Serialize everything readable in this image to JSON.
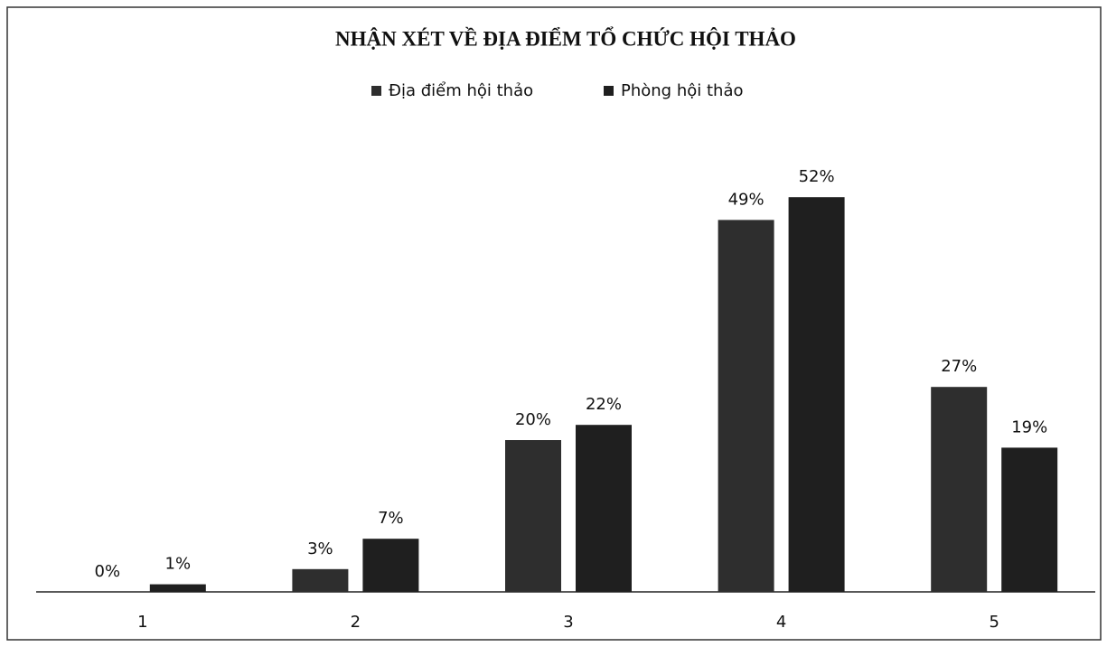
{
  "chart_data": {
    "type": "bar",
    "title": "NHẬN XÉT VỀ ĐỊA ĐIỂM TỔ CHỨC HỘI THẢO",
    "categories": [
      "1",
      "2",
      "3",
      "4",
      "5"
    ],
    "series": [
      {
        "name": "Địa điểm hội thảo",
        "color": "#2e2e2e",
        "values": [
          0,
          3,
          20,
          49,
          27
        ],
        "value_labels": [
          "0%",
          "3%",
          "20%",
          "49%",
          "27%"
        ]
      },
      {
        "name": "Phòng hội thảo",
        "color": "#1f1f1f",
        "values": [
          1,
          7,
          22,
          52,
          19
        ],
        "value_labels": [
          "1%",
          "7%",
          "22%",
          "52%",
          "19%"
        ]
      }
    ],
    "ylim": [
      0,
      60
    ],
    "legend": "top"
  }
}
